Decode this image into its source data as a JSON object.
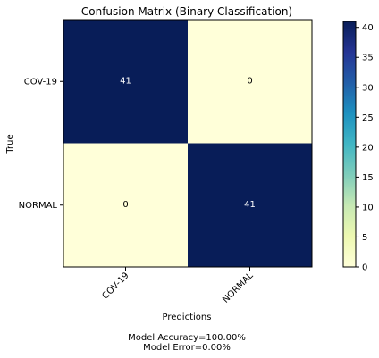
{
  "chart_data": {
    "type": "heatmap",
    "title": "Confusion Matrix (Binary Classification)",
    "xlabel": "Predictions",
    "ylabel": "True",
    "x_categories": [
      "COV-19",
      "NORMAL"
    ],
    "y_categories": [
      "COV-19",
      "NORMAL"
    ],
    "values": [
      [
        41,
        0
      ],
      [
        0,
        41
      ]
    ],
    "colormap": "YlGnBu",
    "colorbar": {
      "range": [
        0,
        41
      ],
      "ticks": [
        0,
        5,
        10,
        15,
        20,
        25,
        30,
        35,
        40
      ]
    },
    "annotations": {
      "accuracy": "Model Accuracy=100.00%",
      "error": "Model Error=0.00%"
    }
  },
  "colors": {
    "low": "#ffffd9",
    "high": "#081d58",
    "text_on_dark": "#ffffff",
    "text_on_light": "#000000"
  }
}
